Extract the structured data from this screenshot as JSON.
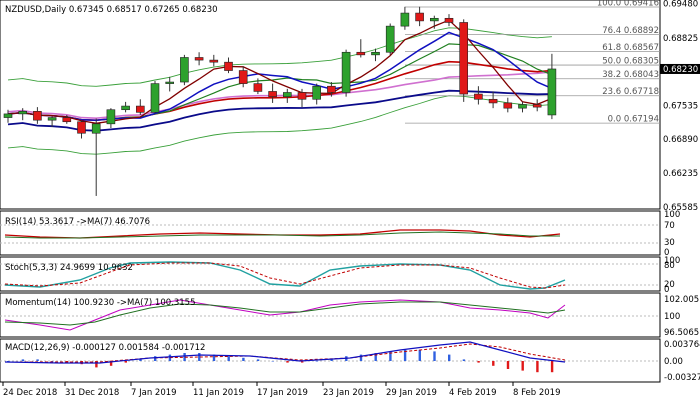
{
  "main": {
    "symbol": "NZDUSD",
    "timeframe": "Daily",
    "ohlc": [
      "0.67345",
      "0.68517",
      "0.67265",
      "0.68230"
    ],
    "current_price": "0.68230"
  },
  "fibonacci": [
    {
      "label": "100.0",
      "price": "0.69416"
    },
    {
      "label": "76.4",
      "price": "0.68892"
    },
    {
      "label": "61.8",
      "price": "0.68567"
    },
    {
      "label": "50.0",
      "price": "0.68305"
    },
    {
      "label": "38.2",
      "price": "0.68043"
    },
    {
      "label": "23.6",
      "price": "0.67718"
    },
    {
      "label": "0.0",
      "price": "0.67194"
    }
  ],
  "price_axis": [
    "0.69480",
    "0.68825",
    "0.68230",
    "0.67535",
    "0.66890",
    "0.66235",
    "0.65585"
  ],
  "rsi": {
    "label": "RSI(14) 53.3617  ->MA(7) 46.7076",
    "axis": [
      "100",
      "70",
      "30",
      "0"
    ]
  },
  "stoch": {
    "label": "Stoch(5,3,3) 24.9699 10.9632",
    "axis": [
      "100",
      "80",
      "20",
      "0"
    ]
  },
  "momentum": {
    "label": "Momentum(14) 100.9230  ->MA(7) 100.3155",
    "axis": [
      "102.0051",
      "100",
      "96.5065"
    ]
  },
  "macd": {
    "label": "MACD(12,26,9) -0.000127 0.001584 -0.001712",
    "axis": [
      "0.003764",
      "0.00",
      "-0.003277"
    ]
  },
  "time_axis": [
    "24 Dec 2018",
    "31 Dec 2018",
    "7 Jan 2019",
    "11 Jan 2019",
    "17 Jan 2019",
    "23 Jan 2019",
    "29 Jan 2019",
    "4 Feb 2019",
    "8 Feb 2019"
  ],
  "chart_data": {
    "type": "candlestick",
    "candles": [
      {
        "o": 0.673,
        "h": 0.6745,
        "l": 0.672,
        "c": 0.6737
      },
      {
        "o": 0.6737,
        "h": 0.6748,
        "l": 0.6725,
        "c": 0.6742
      },
      {
        "o": 0.6742,
        "h": 0.675,
        "l": 0.6718,
        "c": 0.6725
      },
      {
        "o": 0.6725,
        "h": 0.6732,
        "l": 0.6712,
        "c": 0.673
      },
      {
        "o": 0.673,
        "h": 0.6735,
        "l": 0.6718,
        "c": 0.6722
      },
      {
        "o": 0.6722,
        "h": 0.6725,
        "l": 0.669,
        "c": 0.67
      },
      {
        "o": 0.67,
        "h": 0.6728,
        "l": 0.658,
        "c": 0.6718
      },
      {
        "o": 0.6718,
        "h": 0.6748,
        "l": 0.671,
        "c": 0.6745
      },
      {
        "o": 0.6745,
        "h": 0.676,
        "l": 0.674,
        "c": 0.6752
      },
      {
        "o": 0.6752,
        "h": 0.6765,
        "l": 0.6735,
        "c": 0.674
      },
      {
        "o": 0.674,
        "h": 0.68,
        "l": 0.6738,
        "c": 0.6795
      },
      {
        "o": 0.6795,
        "h": 0.6808,
        "l": 0.678,
        "c": 0.6798
      },
      {
        "o": 0.6798,
        "h": 0.685,
        "l": 0.6792,
        "c": 0.6845
      },
      {
        "o": 0.6845,
        "h": 0.6855,
        "l": 0.683,
        "c": 0.684
      },
      {
        "o": 0.684,
        "h": 0.685,
        "l": 0.6828,
        "c": 0.6836
      },
      {
        "o": 0.6836,
        "h": 0.6845,
        "l": 0.6815,
        "c": 0.682
      },
      {
        "o": 0.682,
        "h": 0.6828,
        "l": 0.6788,
        "c": 0.6795
      },
      {
        "o": 0.6795,
        "h": 0.6805,
        "l": 0.6775,
        "c": 0.678
      },
      {
        "o": 0.678,
        "h": 0.6795,
        "l": 0.6758,
        "c": 0.677
      },
      {
        "o": 0.677,
        "h": 0.6785,
        "l": 0.6758,
        "c": 0.6778
      },
      {
        "o": 0.6778,
        "h": 0.6785,
        "l": 0.675,
        "c": 0.6765
      },
      {
        "o": 0.6765,
        "h": 0.6795,
        "l": 0.6755,
        "c": 0.679
      },
      {
        "o": 0.679,
        "h": 0.6798,
        "l": 0.677,
        "c": 0.6778
      },
      {
        "o": 0.6778,
        "h": 0.686,
        "l": 0.677,
        "c": 0.6855
      },
      {
        "o": 0.6855,
        "h": 0.688,
        "l": 0.6845,
        "c": 0.685
      },
      {
        "o": 0.685,
        "h": 0.6862,
        "l": 0.6838,
        "c": 0.6855
      },
      {
        "o": 0.6855,
        "h": 0.691,
        "l": 0.685,
        "c": 0.6905
      },
      {
        "o": 0.6905,
        "h": 0.6942,
        "l": 0.6898,
        "c": 0.693
      },
      {
        "o": 0.693,
        "h": 0.6942,
        "l": 0.6905,
        "c": 0.6915
      },
      {
        "o": 0.6915,
        "h": 0.6925,
        "l": 0.69,
        "c": 0.692
      },
      {
        "o": 0.692,
        "h": 0.6928,
        "l": 0.6905,
        "c": 0.6912
      },
      {
        "o": 0.6912,
        "h": 0.6918,
        "l": 0.676,
        "c": 0.6775
      },
      {
        "o": 0.6775,
        "h": 0.679,
        "l": 0.6755,
        "c": 0.6765
      },
      {
        "o": 0.6765,
        "h": 0.678,
        "l": 0.6748,
        "c": 0.6758
      },
      {
        "o": 0.6758,
        "h": 0.6768,
        "l": 0.674,
        "c": 0.6748
      },
      {
        "o": 0.6748,
        "h": 0.676,
        "l": 0.674,
        "c": 0.6755
      },
      {
        "o": 0.6755,
        "h": 0.6765,
        "l": 0.6742,
        "c": 0.675
      },
      {
        "o": 0.6735,
        "h": 0.6852,
        "l": 0.6727,
        "c": 0.6823
      }
    ]
  },
  "colors": {
    "bull": "#2da12d",
    "bear": "#e01818",
    "ma_blue": "#1010c0",
    "ma_red": "#c00000",
    "ma_green": "#208020",
    "ma_violet": "#d070d0",
    "ma_navy": "#0a0a8a",
    "price_tag": "#000000"
  }
}
